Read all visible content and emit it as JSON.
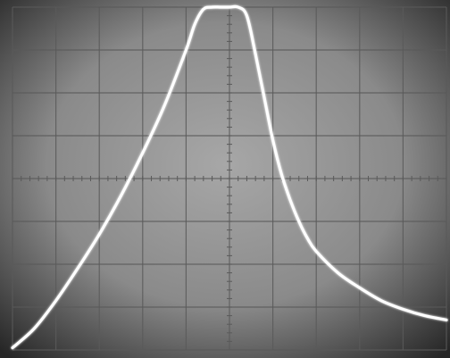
{
  "chart_data": {
    "type": "line",
    "grid": true,
    "grid_divisions": {
      "x": 10,
      "y": 8
    },
    "xlim": [
      0,
      10
    ],
    "ylim": [
      0,
      8
    ],
    "series": [
      {
        "x": [
          0,
          0.5,
          1,
          1.5,
          2,
          2.5,
          3,
          3.5,
          4,
          4.2,
          4.4,
          4.6,
          4.8,
          5.0,
          5.2,
          5.4,
          5.6,
          5.8,
          6.0,
          6.2,
          6.4,
          6.6,
          6.8,
          7.0,
          7.5,
          8.0,
          8.5,
          9.0,
          9.5,
          10
        ],
        "y": [
          0.05,
          0.5,
          1.15,
          1.9,
          2.7,
          3.6,
          4.6,
          5.7,
          7.0,
          7.6,
          7.95,
          8.0,
          8.0,
          8.0,
          8.0,
          7.8,
          6.9,
          5.9,
          4.9,
          4.1,
          3.5,
          3.0,
          2.6,
          2.3,
          1.8,
          1.45,
          1.15,
          0.95,
          0.8,
          0.7
        ]
      }
    ],
    "colors": {
      "trace": "#ffffff",
      "screen": "#8e8e8e",
      "screen_edge": "#1e1e1e",
      "grid": "#5a5a5a"
    }
  }
}
